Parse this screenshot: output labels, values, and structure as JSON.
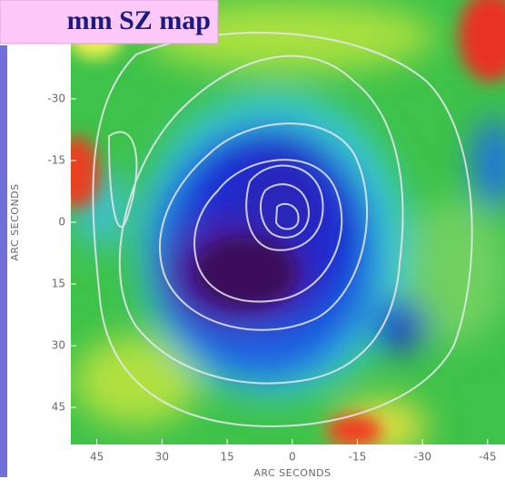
{
  "chart_data": {
    "type": "map",
    "title": "mm SZ map",
    "x_label": "ARC SECONDS",
    "y_label": "ARC SECONDS",
    "xlim": [
      51,
      -49
    ],
    "ylim": [
      -54,
      54
    ],
    "xticks": [
      45,
      30,
      15,
      0,
      -15,
      -30,
      -45
    ],
    "yticks": [
      -30,
      -15,
      0,
      15,
      30,
      45
    ]
  }
}
